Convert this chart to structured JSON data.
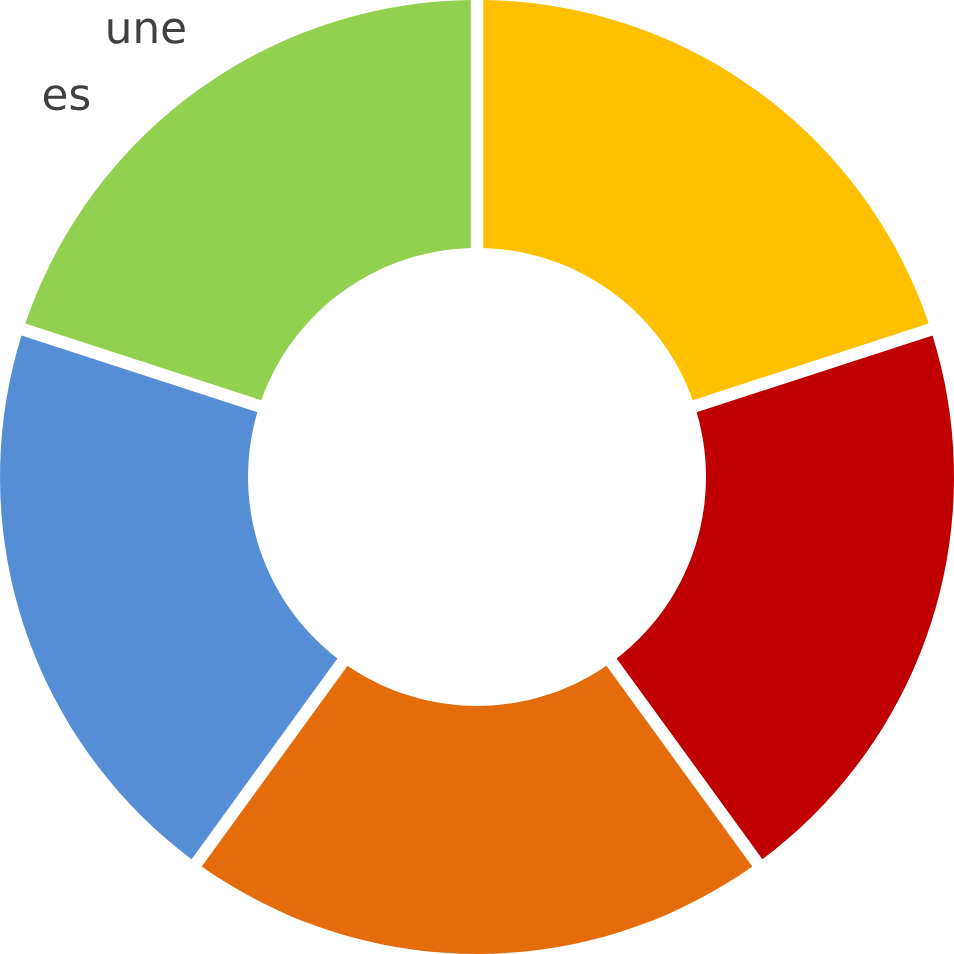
{
  "chart_data": {
    "type": "donut",
    "categories": [
      null,
      null,
      null,
      null,
      null
    ],
    "values": [
      20,
      20,
      20,
      20,
      20
    ],
    "colors": [
      "#ffc000",
      "#c00000",
      "#e46c0a",
      "#558ed5",
      "#92d050"
    ],
    "annotations": [
      "une",
      "es"
    ]
  }
}
